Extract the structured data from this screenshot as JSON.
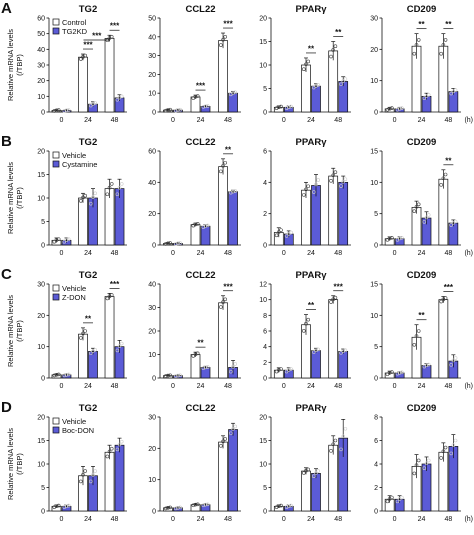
{
  "x_unit": "(h)",
  "colors": {
    "control": "#ffffff",
    "treated": "#5b5bd6",
    "stroke": "#111111"
  },
  "chart_data": [
    {
      "row": "A",
      "type": "bar",
      "legend": [
        "Control",
        "TG2KD"
      ],
      "ylabel": "Relative mRNA levels (/TBP)",
      "categories": [
        "0",
        "24",
        "48"
      ],
      "panels": [
        {
          "title": "TG2",
          "ylim": [
            0,
            60
          ],
          "yticks": [
            0,
            10,
            20,
            30,
            40,
            50,
            60
          ],
          "series": [
            {
              "name": "Control",
              "values": [
                1,
                35,
                47
              ],
              "err": [
                0.5,
                2,
                2
              ]
            },
            {
              "name": "TG2KD",
              "values": [
                1,
                5,
                9
              ],
              "err": [
                0.5,
                1.5,
                2
              ]
            }
          ],
          "sig": [
            {
              "bar": 1,
              "text": "***"
            },
            {
              "bar": 2,
              "text": "***"
            }
          ],
          "sig_across": [
            {
              "text": "***"
            }
          ]
        },
        {
          "title": "CCL22",
          "ylim": [
            0,
            50
          ],
          "yticks": [
            0,
            10,
            20,
            30,
            40,
            50
          ],
          "series": [
            {
              "name": "Control",
              "values": [
                1,
                8,
                38
              ],
              "err": [
                0.5,
                1,
                4
              ]
            },
            {
              "name": "TG2KD",
              "values": [
                1,
                3,
                10
              ],
              "err": [
                0.5,
                0.5,
                1
              ]
            }
          ],
          "sig": [
            {
              "bar": 1,
              "text": "***"
            },
            {
              "bar": 2,
              "text": "***"
            }
          ],
          "sig_across": []
        },
        {
          "title": "PPARγ",
          "ylim": [
            0,
            20
          ],
          "yticks": [
            0,
            5,
            10,
            15,
            20
          ],
          "series": [
            {
              "name": "Control",
              "values": [
                1,
                10,
                13
              ],
              "err": [
                0.3,
                1.5,
                2
              ]
            },
            {
              "name": "TG2KD",
              "values": [
                1,
                5.5,
                6.5
              ],
              "err": [
                0.3,
                0.5,
                1
              ]
            }
          ],
          "sig": [
            {
              "bar": 1,
              "text": "**"
            },
            {
              "bar": 2,
              "text": "**"
            }
          ],
          "sig_across": []
        },
        {
          "title": "CD209",
          "ylim": [
            0,
            30
          ],
          "yticks": [
            0,
            10,
            20,
            30
          ],
          "series": [
            {
              "name": "Control",
              "values": [
                1,
                21,
                21
              ],
              "err": [
                0.5,
                4,
                4
              ]
            },
            {
              "name": "TG2KD",
              "values": [
                1,
                5,
                6.5
              ],
              "err": [
                0.5,
                1,
                1
              ]
            }
          ],
          "sig": [
            {
              "bar": 1,
              "text": "**"
            },
            {
              "bar": 2,
              "text": "**"
            }
          ],
          "sig_across": []
        }
      ]
    },
    {
      "row": "B",
      "type": "bar",
      "legend": [
        "Vehicle",
        "Cystamine"
      ],
      "ylabel": "Relative mRNA levels (/TBP)",
      "categories": [
        "0",
        "24",
        "48"
      ],
      "panels": [
        {
          "title": "TG2",
          "ylim": [
            0,
            20
          ],
          "yticks": [
            0,
            5,
            10,
            15,
            20
          ],
          "series": [
            {
              "name": "Vehicle",
              "values": [
                1,
                10,
                12
              ],
              "err": [
                0.5,
                1,
                2
              ]
            },
            {
              "name": "Cystamine",
              "values": [
                1,
                10,
                12
              ],
              "err": [
                0.5,
                2,
                2
              ]
            }
          ],
          "sig": [],
          "sig_across": []
        },
        {
          "title": "CCL22",
          "ylim": [
            0,
            60
          ],
          "yticks": [
            0,
            20,
            40,
            60
          ],
          "series": [
            {
              "name": "Vehicle",
              "values": [
                1,
                13,
                50
              ],
              "err": [
                0.5,
                1,
                5
              ]
            },
            {
              "name": "Cystamine",
              "values": [
                1,
                12,
                34
              ],
              "err": [
                0.5,
                1,
                1
              ]
            }
          ],
          "sig": [
            {
              "bar": 2,
              "text": "**"
            }
          ],
          "sig_across": []
        },
        {
          "title": "PPARγ",
          "ylim": [
            0,
            6
          ],
          "yticks": [
            0,
            2,
            4,
            6
          ],
          "series": [
            {
              "name": "Vehicle",
              "values": [
                0.8,
                3.5,
                4.4
              ],
              "err": [
                0.3,
                0.5,
                0.5
              ]
            },
            {
              "name": "Cystamine",
              "values": [
                0.7,
                3.8,
                4
              ],
              "err": [
                0.2,
                0.7,
                0.4
              ]
            }
          ],
          "sig": [],
          "sig_across": []
        },
        {
          "title": "CD209",
          "ylim": [
            0,
            15
          ],
          "yticks": [
            0,
            5,
            10,
            15
          ],
          "series": [
            {
              "name": "Vehicle",
              "values": [
                1,
                6,
                10.5
              ],
              "err": [
                0.3,
                1,
                1.5
              ]
            },
            {
              "name": "Cystamine",
              "values": [
                1,
                4.3,
                3.5
              ],
              "err": [
                0.3,
                1,
                0.5
              ]
            }
          ],
          "sig": [
            {
              "bar": 2,
              "text": "**"
            }
          ],
          "sig_across": []
        }
      ]
    },
    {
      "row": "C",
      "type": "bar",
      "legend": [
        "Vehicle",
        "Z-DON"
      ],
      "ylabel": "Relative mRNA levels (/TBP)",
      "categories": [
        "0",
        "24",
        "48"
      ],
      "panels": [
        {
          "title": "TG2",
          "ylim": [
            0,
            30
          ],
          "yticks": [
            0,
            10,
            20,
            30
          ],
          "series": [
            {
              "name": "Vehicle",
              "values": [
                1,
                14,
                26
              ],
              "err": [
                0.3,
                2,
                1
              ]
            },
            {
              "name": "Z-DON",
              "values": [
                1,
                8.5,
                10
              ],
              "err": [
                0.3,
                1,
                2
              ]
            }
          ],
          "sig": [
            {
              "bar": 1,
              "text": "**"
            },
            {
              "bar": 2,
              "text": "***"
            }
          ],
          "sig_across": []
        },
        {
          "title": "CCL22",
          "ylim": [
            0,
            40
          ],
          "yticks": [
            0,
            10,
            20,
            30,
            40
          ],
          "series": [
            {
              "name": "Vehicle",
              "values": [
                1,
                10,
                32
              ],
              "err": [
                0.3,
                1,
                3
              ]
            },
            {
              "name": "Z-DON",
              "values": [
                1,
                4.5,
                4.5
              ],
              "err": [
                0.3,
                0.5,
                3
              ]
            }
          ],
          "sig": [
            {
              "bar": 1,
              "text": "**"
            },
            {
              "bar": 2,
              "text": "***"
            }
          ],
          "sig_across": []
        },
        {
          "title": "PPARγ",
          "ylim": [
            0,
            12
          ],
          "yticks": [
            0,
            2,
            4,
            6,
            8,
            10,
            12
          ],
          "series": [
            {
              "name": "Vehicle",
              "values": [
                1,
                6.8,
                10
              ],
              "err": [
                0.3,
                1.3,
                0.5
              ]
            },
            {
              "name": "Z-DON",
              "values": [
                1,
                3.5,
                3.4
              ],
              "err": [
                0.3,
                0.3,
                0.3
              ]
            }
          ],
          "sig": [
            {
              "bar": 1,
              "text": "**"
            },
            {
              "bar": 2,
              "text": "***"
            }
          ],
          "sig_across": []
        },
        {
          "title": "CD209",
          "ylim": [
            0,
            15
          ],
          "yticks": [
            0,
            5,
            10,
            15
          ],
          "series": [
            {
              "name": "Vehicle",
              "values": [
                0.8,
                6.5,
                12.5
              ],
              "err": [
                0.3,
                2,
                0.5
              ]
            },
            {
              "name": "Z-DON",
              "values": [
                0.8,
                2,
                2.7
              ],
              "err": [
                0.2,
                0.3,
                1
              ]
            }
          ],
          "sig": [
            {
              "bar": 1,
              "text": "**"
            },
            {
              "bar": 2,
              "text": "***"
            }
          ],
          "sig_across": []
        }
      ]
    },
    {
      "row": "D",
      "type": "bar",
      "legend": [
        "Vehicle",
        "Boc-DON"
      ],
      "ylabel": "Relative mRNA levels (/TBP)",
      "categories": [
        "0",
        "24",
        "48"
      ],
      "panels": [
        {
          "title": "TG2",
          "ylim": [
            0,
            20
          ],
          "yticks": [
            0,
            5,
            10,
            15,
            20
          ],
          "series": [
            {
              "name": "Vehicle",
              "values": [
                1,
                7.5,
                12.5
              ],
              "err": [
                0.3,
                2,
                1.5
              ]
            },
            {
              "name": "Boc-DON",
              "values": [
                1,
                7.5,
                14
              ],
              "err": [
                0.3,
                2,
                1.5
              ]
            }
          ],
          "sig": [],
          "sig_across": []
        },
        {
          "title": "CCL22",
          "ylim": [
            0,
            30
          ],
          "yticks": [
            0,
            10,
            20,
            30
          ],
          "series": [
            {
              "name": "Vehicle",
              "values": [
                1,
                2,
                22
              ],
              "err": [
                0.3,
                0.3,
                2
              ]
            },
            {
              "name": "Boc-DON",
              "values": [
                1,
                2,
                26
              ],
              "err": [
                0.3,
                0.3,
                2
              ]
            }
          ],
          "sig": [],
          "sig_across": []
        },
        {
          "title": "PPARγ",
          "ylim": [
            0,
            20
          ],
          "yticks": [
            0,
            5,
            10,
            15,
            20
          ],
          "series": [
            {
              "name": "Vehicle",
              "values": [
                1,
                8.5,
                14
              ],
              "err": [
                0.3,
                0.7,
                2
              ]
            },
            {
              "name": "Boc-DON",
              "values": [
                1,
                8,
                15.5
              ],
              "err": [
                0.3,
                1,
                4
              ]
            }
          ],
          "sig": [],
          "sig_across": []
        },
        {
          "title": "CD209",
          "ylim": [
            0,
            8
          ],
          "yticks": [
            0,
            2,
            4,
            6,
            8
          ],
          "series": [
            {
              "name": "Vehicle",
              "values": [
                1,
                3.8,
                5
              ],
              "err": [
                0.3,
                1,
                0.8
              ]
            },
            {
              "name": "Boc-DON",
              "values": [
                1,
                4,
                5.5
              ],
              "err": [
                0.3,
                0.6,
                1
              ]
            }
          ],
          "sig": [],
          "sig_across": []
        }
      ]
    }
  ]
}
